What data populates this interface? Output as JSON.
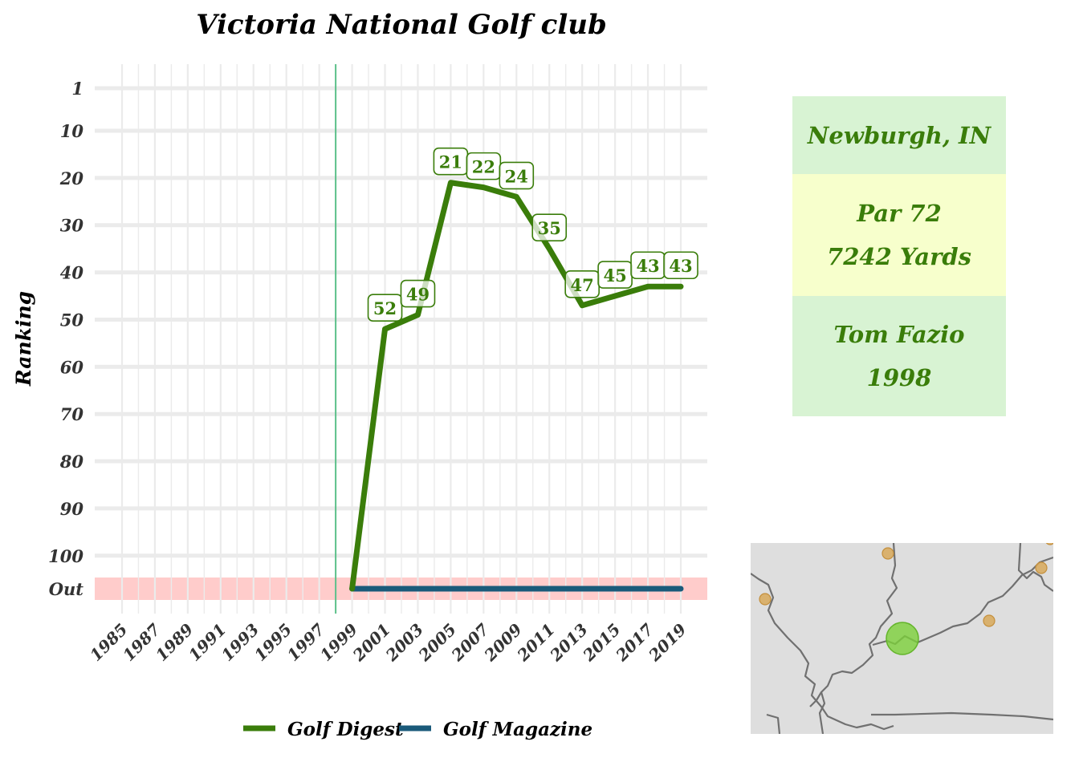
{
  "chart_data": {
    "type": "line",
    "title": "Victoria National Golf club",
    "xlabel": "",
    "ylabel": "Ranking",
    "x_ticks": [
      "1985",
      "1987",
      "1989",
      "1991",
      "1993",
      "1995",
      "1997",
      "1999",
      "2001",
      "2003",
      "2005",
      "2007",
      "2009",
      "2011",
      "2013",
      "2015",
      "2017",
      "2019"
    ],
    "y_ticks": [
      "1",
      "10",
      "20",
      "30",
      "40",
      "50",
      "60",
      "70",
      "80",
      "90",
      "100",
      "Out"
    ],
    "xlim": [
      1984,
      2020
    ],
    "ylim": [
      1,
      107
    ],
    "out_value": 107,
    "reference_year": 1998,
    "series": [
      {
        "name": "Golf Digest",
        "color": "#3a7d0a",
        "points": [
          {
            "x": 1999,
            "y": "Out"
          },
          {
            "x": 2001,
            "y": 52
          },
          {
            "x": 2003,
            "y": 49
          },
          {
            "x": 2005,
            "y": 21
          },
          {
            "x": 2007,
            "y": 22
          },
          {
            "x": 2009,
            "y": 24
          },
          {
            "x": 2011,
            "y": 35
          },
          {
            "x": 2013,
            "y": 47
          },
          {
            "x": 2015,
            "y": 45
          },
          {
            "x": 2017,
            "y": 43
          },
          {
            "x": 2019,
            "y": 43
          }
        ]
      },
      {
        "name": "Golf Magazine",
        "color": "#1a5a7a",
        "points": [
          {
            "x": 1999,
            "y": "Out"
          },
          {
            "x": 2019,
            "y": "Out"
          }
        ]
      }
    ],
    "grid": true,
    "legend_position": "bottom"
  },
  "info": {
    "location": "Newburgh, IN",
    "par": "Par 72",
    "yards": "7242 Yards",
    "architect": "Tom Fazio",
    "year": "1998",
    "colors": {
      "green_block": "#d8f3d3",
      "yellow_block": "#f7ffcc",
      "text": "#3a7d0a"
    }
  },
  "colors": {
    "out_band": "#ffcccb",
    "grid": "#ebebeb",
    "reference_line": "#5cc08a",
    "map_background": "#dedede",
    "map_lines": "#707070",
    "map_dots": "#d8a95a",
    "map_highlight": "#7ccf3a"
  }
}
